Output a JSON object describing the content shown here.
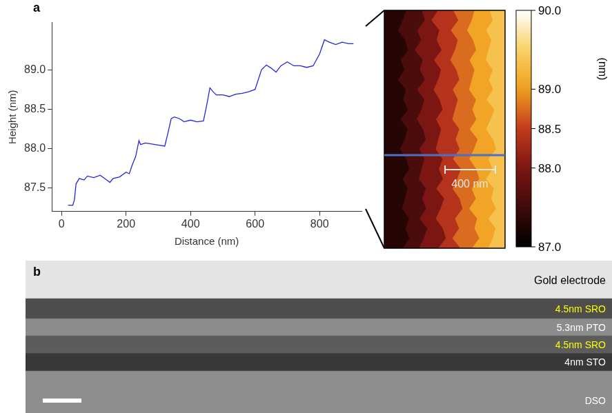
{
  "panel_labels": [
    "a",
    "b"
  ],
  "chart_data": {
    "type": "line",
    "x_label": "Distance (nm)",
    "y_label": "Height (nm)",
    "x": [
      20,
      35,
      40,
      45,
      55,
      70,
      80,
      100,
      120,
      140,
      150,
      160,
      180,
      200,
      210,
      220,
      230,
      240,
      245,
      260,
      290,
      320,
      330,
      340,
      350,
      365,
      380,
      400,
      420,
      440,
      450,
      460,
      470,
      480,
      500,
      520,
      540,
      560,
      580,
      600,
      620,
      635,
      650,
      665,
      680,
      700,
      720,
      740,
      760,
      780,
      800,
      815,
      830,
      850,
      870,
      890,
      905
    ],
    "series": [
      {
        "color": "#2424e0",
        "values": [
          87.28,
          87.28,
          87.35,
          87.55,
          87.62,
          87.6,
          87.65,
          87.63,
          87.66,
          87.6,
          87.57,
          87.62,
          87.64,
          87.7,
          87.68,
          87.8,
          87.9,
          88.1,
          88.05,
          88.07,
          88.05,
          88.03,
          88.2,
          88.38,
          88.4,
          88.38,
          88.34,
          88.36,
          88.34,
          88.35,
          88.55,
          88.77,
          88.72,
          88.68,
          88.68,
          88.66,
          88.69,
          88.7,
          88.72,
          88.75,
          89.0,
          89.06,
          89.02,
          88.97,
          89.05,
          89.1,
          89.05,
          89.05,
          89.03,
          89.05,
          89.2,
          89.38,
          89.35,
          89.32,
          89.35,
          89.33,
          89.33
        ]
      }
    ],
    "xlim": [
      -30,
      930
    ],
    "xticks": [
      0,
      200,
      400,
      600,
      800
    ],
    "ylim": [
      87.2,
      89.6
    ],
    "yticks": [
      87.5,
      {
        "value": 88,
        "label": "88.0"
      },
      88.5,
      {
        "value": 89,
        "label": "89.0"
      }
    ],
    "grid": false
  },
  "afm_image": {
    "scale_bar": "400 nm",
    "terrace_heights": [
      87.3,
      87.6,
      88.0,
      88.4,
      88.75,
      89.05,
      89.35
    ],
    "colorbar": {
      "range": [
        87,
        90
      ],
      "ticks": [
        {
          "value": 90,
          "label": "90.0"
        },
        {
          "value": 89,
          "label": "89.0"
        },
        88.5,
        {
          "value": 88,
          "label": "88.0"
        },
        {
          "value": 87,
          "label": "87.0"
        }
      ],
      "unit": "(nm)"
    }
  },
  "tem_image": {
    "layers": [
      {
        "label": "Gold electrode",
        "color": "#000000"
      },
      {
        "label": "4.5nm SRO",
        "color": "#ffff00"
      },
      {
        "label": "5.3nm PTO",
        "color": "#ffffff"
      },
      {
        "label": "4.5nm SRO",
        "color": "#ffff00"
      },
      {
        "label": "4nm STO",
        "color": "#ffffff"
      },
      {
        "label": "DSO",
        "color": "#ffffff"
      }
    ]
  }
}
